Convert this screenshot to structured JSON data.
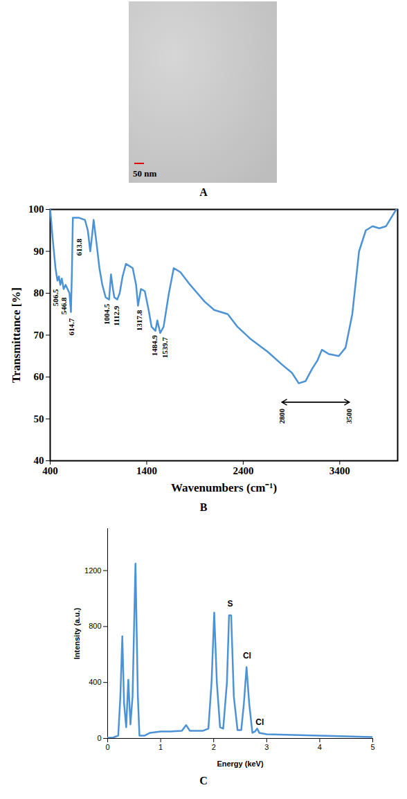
{
  "chart_data": [
    {
      "type": "image",
      "panel": "A",
      "scale_bar": "50 nm"
    },
    {
      "type": "line",
      "panel": "B",
      "color": "#4b92d6",
      "grid": false,
      "xlabel": "Wavenumbers (cm⁻¹)",
      "ylabel": "Transmittance [%]",
      "xlim": [
        400,
        4000
      ],
      "xticks": [
        400,
        1400,
        2400,
        3400
      ],
      "ylim": [
        40,
        100
      ],
      "yticks": [
        40,
        50,
        60,
        70,
        80,
        90,
        100
      ],
      "x": [
        400,
        430,
        455,
        475,
        490,
        505,
        520,
        540,
        560,
        580,
        600,
        615,
        625,
        635,
        700,
        760,
        790,
        815,
        835,
        850,
        880,
        910,
        940,
        975,
        1010,
        1030,
        1050,
        1065,
        1095,
        1120,
        1150,
        1185,
        1220,
        1255,
        1290,
        1310,
        1325,
        1340,
        1380,
        1420,
        1450,
        1490,
        1510,
        1525,
        1540,
        1575,
        1630,
        1680,
        1750,
        1850,
        1925,
        2000,
        2100,
        2240,
        2340,
        2480,
        2655,
        2800,
        2905,
        2975,
        3045,
        3115,
        3170,
        3215,
        3285,
        3390,
        3460,
        3530,
        3600,
        3670,
        3740,
        3810,
        3880,
        3985,
        4000
      ],
      "values": [
        100,
        92,
        86,
        83,
        84,
        82,
        83.5,
        81,
        82,
        81,
        80,
        75.5,
        85,
        98,
        98,
        97.5,
        95,
        90,
        94,
        97.5,
        92,
        86,
        82,
        79,
        78.5,
        84.5,
        81,
        79,
        78.5,
        80,
        84,
        87,
        86.5,
        86,
        82,
        77,
        79,
        81,
        80.5,
        76,
        72,
        71,
        73.5,
        72,
        70.5,
        72,
        80,
        86,
        85,
        82,
        80,
        78,
        76,
        75,
        72,
        69,
        66,
        63,
        61,
        58.5,
        59,
        62,
        64,
        66.5,
        65.5,
        65,
        67,
        75,
        90,
        95,
        96,
        95.5,
        96,
        100,
        100
      ],
      "annotations": [
        {
          "text": "506.5",
          "x": 460,
          "y": 81
        },
        {
          "text": "546.8",
          "x": 540,
          "y": 79
        },
        {
          "text": "614.7",
          "x": 620,
          "y": 74
        },
        {
          "text": "613.8",
          "x": 700,
          "y": 93
        },
        {
          "text": "1004.5",
          "x": 990,
          "y": 77.5
        },
        {
          "text": "1112.9",
          "x": 1085,
          "y": 77
        },
        {
          "text": "1317.8",
          "x": 1324,
          "y": 76
        },
        {
          "text": "1484.9",
          "x": 1480,
          "y": 70
        },
        {
          "text": "1539.7",
          "x": 1590,
          "y": 69.5
        },
        {
          "text": "2800",
          "x": 2800,
          "y": 52.5
        },
        {
          "text": "3500",
          "x": 3500,
          "y": 52.5
        }
      ],
      "arrow": {
        "x": [
          2800,
          3500
        ],
        "y": 54
      }
    },
    {
      "type": "line",
      "panel": "C",
      "color": "#4b92d6",
      "grid": false,
      "xlabel": "Energy (keV)",
      "ylabel": "Intensity (a.u.)",
      "xlim": [
        0,
        5
      ],
      "xticks": [
        0,
        1,
        2,
        3,
        4,
        5
      ],
      "ylim": [
        0,
        1500
      ],
      "yticks": [
        0,
        400,
        800,
        1200
      ],
      "x": [
        0,
        0.1,
        0.2,
        0.24,
        0.277,
        0.31,
        0.35,
        0.39,
        0.43,
        0.47,
        0.525,
        0.57,
        0.6,
        0.7,
        0.8,
        1.0,
        1.2,
        1.4,
        1.48,
        1.55,
        1.8,
        1.9,
        1.96,
        2.01,
        2.06,
        2.12,
        2.18,
        2.25,
        2.29,
        2.33,
        2.38,
        2.45,
        2.52,
        2.57,
        2.62,
        2.67,
        2.73,
        2.78,
        2.82,
        2.86,
        3.0,
        3.5,
        4.0,
        4.5,
        5.0
      ],
      "values": [
        5,
        5,
        20,
        300,
        730,
        250,
        80,
        420,
        100,
        300,
        1250,
        300,
        20,
        20,
        40,
        50,
        50,
        55,
        95,
        55,
        55,
        70,
        400,
        900,
        400,
        80,
        70,
        400,
        880,
        880,
        300,
        60,
        60,
        250,
        510,
        250,
        40,
        50,
        70,
        40,
        30,
        25,
        20,
        15,
        10
      ],
      "annotations": [
        {
          "text": "S",
          "x": 2.31,
          "y": 960
        },
        {
          "text": "Cl",
          "x": 2.63,
          "y": 590
        },
        {
          "text": "Cl",
          "x": 2.87,
          "y": 115
        }
      ]
    }
  ]
}
